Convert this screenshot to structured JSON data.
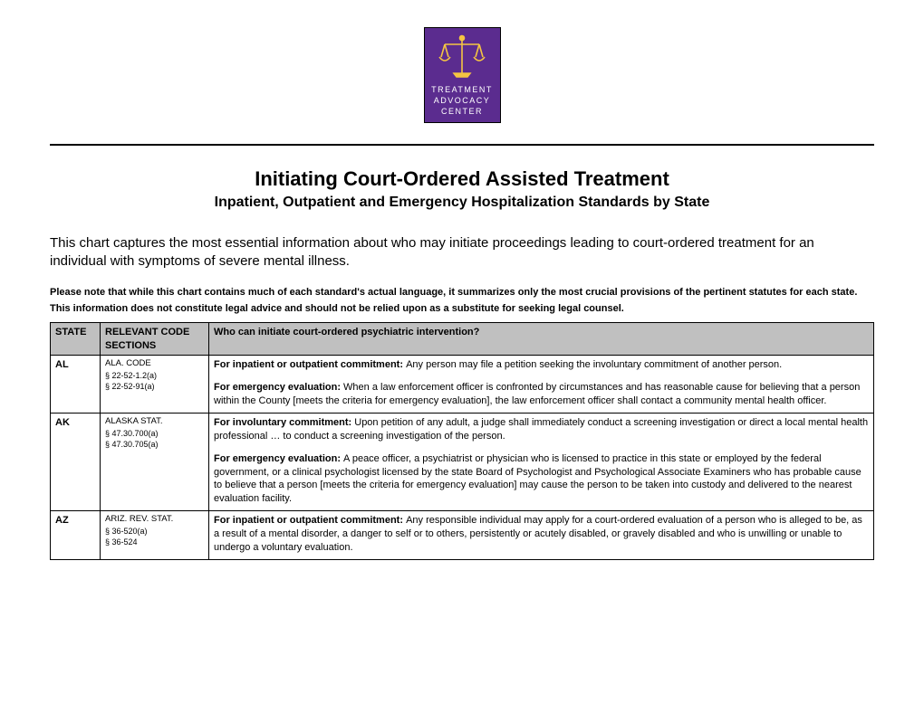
{
  "logo": {
    "line1": "TREATMENT",
    "line2": "ADVOCACY",
    "line3": "CENTER",
    "bg_color": "#5b2c8f",
    "text_color": "#ffffff",
    "scales_color": "#f5c542"
  },
  "title": "Initiating Court-Ordered Assisted Treatment",
  "subtitle": "Inpatient, Outpatient and Emergency Hospitalization Standards by State",
  "intro": "This chart captures the most essential information about who may initiate proceedings leading to court-ordered treatment for an individual with symptoms of severe mental illness.",
  "disclaimer": "Please note that while this chart contains much of each standard's actual language, it summarizes only the most crucial provisions of the pertinent statutes for each state. This information does not constitute legal advice and should not be relied upon as a substitute for seeking legal counsel.",
  "columns": {
    "state": "STATE",
    "code": "RELEVANT CODE SECTIONS",
    "who": "Who can initiate court-ordered psychiatric intervention?"
  },
  "rows": [
    {
      "state": "AL",
      "code_title": "ALA. CODE",
      "code_lines": [
        "§ 22-52-1.2(a)",
        "§ 22-52-91(a)"
      ],
      "paras": [
        {
          "lead": "For inpatient or outpatient commitment: ",
          "text": "Any person may file a petition seeking the involuntary commitment of another person."
        },
        {
          "lead": "For emergency evaluation: ",
          "text": "When a law enforcement officer is confronted by circumstances and has reasonable cause for believing that a person within the County [meets the criteria for emergency evaluation], the law enforcement officer shall contact a community mental health officer."
        }
      ]
    },
    {
      "state": "AK",
      "code_title": "ALASKA STAT.",
      "code_lines": [
        "§ 47.30.700(a)",
        "§ 47.30.705(a)"
      ],
      "paras": [
        {
          "lead": "For involuntary commitment: ",
          "text": "Upon petition of any adult, a judge shall immediately conduct a screening investigation or direct a local mental health professional … to conduct a screening investigation of the person."
        },
        {
          "lead": "For emergency evaluation: ",
          "text": "A peace officer, a psychiatrist or physician who is licensed to practice in this state or employed by the federal government, or a clinical psychologist licensed by the state Board of Psychologist and Psychological Associate Examiners who has probable cause to believe that a person [meets the criteria for emergency evaluation] may cause the person to be taken into custody and delivered to the nearest evaluation facility."
        }
      ]
    },
    {
      "state": "AZ",
      "code_title": "ARIZ. REV. STAT.",
      "code_lines": [
        "§ 36-520(a)",
        "§ 36-524"
      ],
      "paras": [
        {
          "lead": "For inpatient or outpatient commitment: ",
          "text": "Any responsible individual may apply for a court-ordered evaluation of a person who is alleged to be, as a result of a mental disorder, a danger to self or to others, persistently or acutely disabled, or gravely disabled and who is unwilling or unable to undergo a voluntary evaluation."
        }
      ]
    }
  ]
}
